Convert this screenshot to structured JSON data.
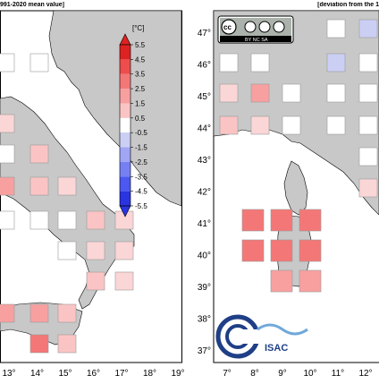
{
  "left_panel": {
    "header": "991-2020 mean value]",
    "colorbar": {
      "unit": "[°C]",
      "ticks": [
        "5.5",
        "4.5",
        "3.5",
        "2.5",
        "1.5",
        "0.5",
        "-0.5",
        "-1.5",
        "-2.5",
        "-3.5",
        "-4.5",
        "-5.5"
      ],
      "colors": [
        "#dd2222",
        "#ee4d4d",
        "#f47777",
        "#f8a0a0",
        "#fbc4c4",
        "#ffffff",
        "#cccff4",
        "#a0a6f3",
        "#7780f2",
        "#4c58f0",
        "#2a34e0"
      ]
    },
    "x_ticks": [
      "13°",
      "14°",
      "15°",
      "16°",
      "17°",
      "18°",
      "19°"
    ],
    "colors": {
      "land": "#c8c8c8",
      "sea": "#ffffff"
    }
  },
  "right_panel": {
    "header": "[deviation from the 1",
    "y_ticks": [
      "47°",
      "46°",
      "45°",
      "44°",
      "43°",
      "42°",
      "41°",
      "40°",
      "39°",
      "38°",
      "37°"
    ],
    "x_ticks": [
      "7°",
      "8°",
      "9°",
      "10°",
      "11°",
      "12°",
      "1"
    ],
    "license_badge": "BY NC SA",
    "logo_text": "ISAC",
    "colors": {
      "land": "#c8c8c8",
      "sea": "#ffffff"
    }
  }
}
